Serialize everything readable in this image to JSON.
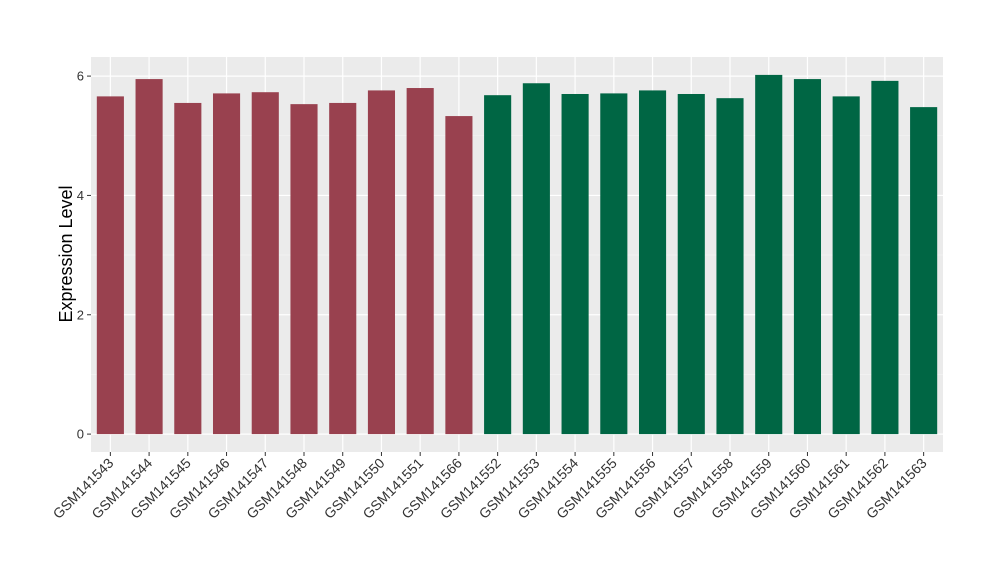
{
  "chart_data": {
    "type": "bar",
    "y_label": "Expression Level",
    "categories": [
      "GSM141543",
      "GSM141544",
      "GSM141545",
      "GSM141546",
      "GSM141547",
      "GSM141548",
      "GSM141549",
      "GSM141550",
      "GSM141551",
      "GSM141566",
      "GSM141552",
      "GSM141553",
      "GSM141554",
      "GSM141555",
      "GSM141556",
      "GSM141557",
      "GSM141558",
      "GSM141559",
      "GSM141560",
      "GSM141561",
      "GSM141562",
      "GSM141563"
    ],
    "values": [
      5.66,
      5.95,
      5.55,
      5.71,
      5.73,
      5.53,
      5.55,
      5.76,
      5.8,
      5.33,
      5.68,
      5.88,
      5.7,
      5.71,
      5.76,
      5.7,
      5.63,
      6.02,
      5.95,
      5.66,
      5.92,
      5.48
    ],
    "colors": [
      "#99414f",
      "#99414f",
      "#99414f",
      "#99414f",
      "#99414f",
      "#99414f",
      "#99414f",
      "#99414f",
      "#99414f",
      "#99414f",
      "#006644",
      "#006644",
      "#006644",
      "#006644",
      "#006644",
      "#006644",
      "#006644",
      "#006644",
      "#006644",
      "#006644",
      "#006644",
      "#006644"
    ],
    "ylim": [
      -0.3,
      6.32
    ],
    "yticks": [
      0,
      2,
      4,
      6
    ],
    "grid": true
  }
}
